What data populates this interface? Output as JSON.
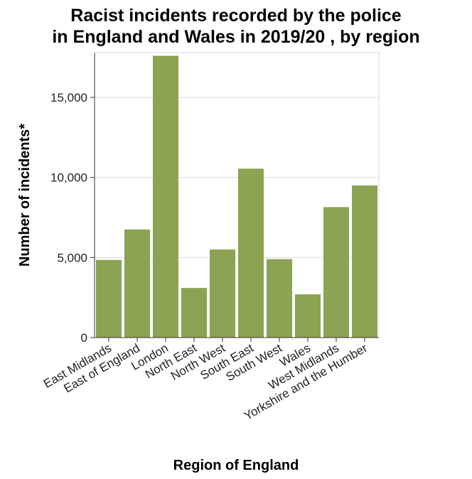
{
  "chart_data": {
    "type": "bar",
    "title_line1": "Racist incidents recorded by the police",
    "title_line2": "in England and Wales in 2019/20 , by region",
    "xlabel": "Region of England",
    "ylabel": "Number of incidents*",
    "categories": [
      "East Midlands",
      "East of England",
      "London",
      "North East",
      "North West",
      "South East",
      "South West",
      "Wales",
      "West Midlands",
      "Yorkshire and the Humber"
    ],
    "values": [
      4850,
      6750,
      17600,
      3100,
      5500,
      10550,
      4900,
      2700,
      8150,
      9500
    ],
    "ylim": [
      0,
      17800
    ],
    "yticks": [
      0,
      5000,
      10000,
      15000
    ],
    "ytick_labels": [
      "0",
      "5,000",
      "10,000",
      "15,000"
    ],
    "bar_color": "#8ba352",
    "grid": true
  }
}
